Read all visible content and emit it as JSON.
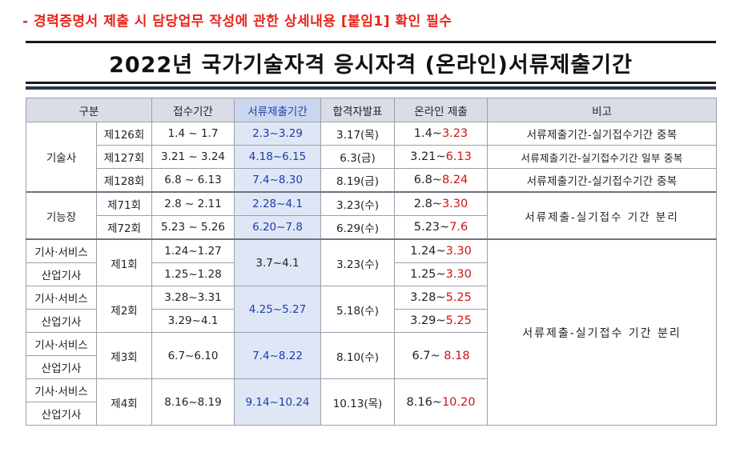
{
  "notice": "- 경력증명서 제출 시 담당업무 작성에 관한 상세내용 [붙임1] 확인 필수",
  "title": "2022년 국가기술자격 응시자격 (온라인)서류제출기간",
  "headers": {
    "category": "구분",
    "reception": "접수기간",
    "document": "서류제출기간",
    "pass": "합격자발표",
    "online": "온라인 제출",
    "remarks": "비고"
  },
  "groups": {
    "gisulsa": "기술사",
    "gineungjang": "기능장",
    "gisa_service": "기사·서비스",
    "sanup_gisa": "산업기사"
  },
  "gisulsa_rows": [
    {
      "round": "제126회",
      "reception": "1.4 ~ 1.7",
      "document": "2.3~3.29",
      "pass": "3.17(목)",
      "online_start": "1.4~",
      "online_end": "3.23",
      "remarks": "서류제출기간-실기접수기간 중복"
    },
    {
      "round": "제127회",
      "reception": "3.21 ~ 3.24",
      "document": "4.18~6.15",
      "pass": "6.3(금)",
      "online_start": "3.21~",
      "online_end": "6.13",
      "remarks": "서류제출기간-실기접수기간 일부 중복"
    },
    {
      "round": "제128회",
      "reception": "6.8 ~ 6.13",
      "document": "7.4~8.30",
      "pass": "8.19(금)",
      "online_start": "6.8~",
      "online_end": "8.24",
      "remarks": "서류제출기간-실기접수기간 중복"
    }
  ],
  "gineungjang_rows": [
    {
      "round": "제71회",
      "reception": "2.8 ~ 2.11",
      "document": "2.28~4.1",
      "pass": "3.23(수)",
      "online_start": "2.8~",
      "online_end": "3.30"
    },
    {
      "round": "제72회",
      "reception": "5.23 ~ 5.26",
      "document": "6.20~7.8",
      "pass": "6.29(수)",
      "online_start": "5.23~",
      "online_end": "7.6"
    }
  ],
  "gineungjang_remarks": "서류제출-실기접수 기간 분리",
  "gisa_rounds": [
    {
      "round": "제1회",
      "reception_service": "1.24~1.27",
      "reception_industry": "1.25~1.28",
      "document": "3.7~4.1",
      "pass": "3.23(수)",
      "online_service_start": "1.24~",
      "online_service_end": "3.30",
      "online_industry_start": "1.25~",
      "online_industry_end": "3.30"
    },
    {
      "round": "제2회",
      "reception_service": "3.28~3.31",
      "reception_industry": "3.29~4.1",
      "document": "4.25~5.27",
      "pass": "5.18(수)",
      "online_service_start": "3.28~",
      "online_service_end": "5.25",
      "online_industry_start": "3.29~",
      "online_industry_end": "5.25"
    },
    {
      "round": "제3회",
      "reception": "6.7~6.10",
      "document": "7.4~8.22",
      "pass": "8.10(수)",
      "online_start": "6.7~",
      "online_end": "8.18"
    },
    {
      "round": "제4회",
      "reception": "8.16~8.19",
      "document": "9.14~10.24",
      "pass": "10.13(목)",
      "online_start": "8.16~",
      "online_end": "10.20"
    }
  ],
  "gisa_remarks": "서류제출-실기접수 기간 분리",
  "colors": {
    "notice_red": "#e8241a",
    "date_blue": "#1a3ea8",
    "date_red": "#cc1414",
    "header_bg": "#d9dde6",
    "highlight_bg": "#dfe6f6"
  }
}
